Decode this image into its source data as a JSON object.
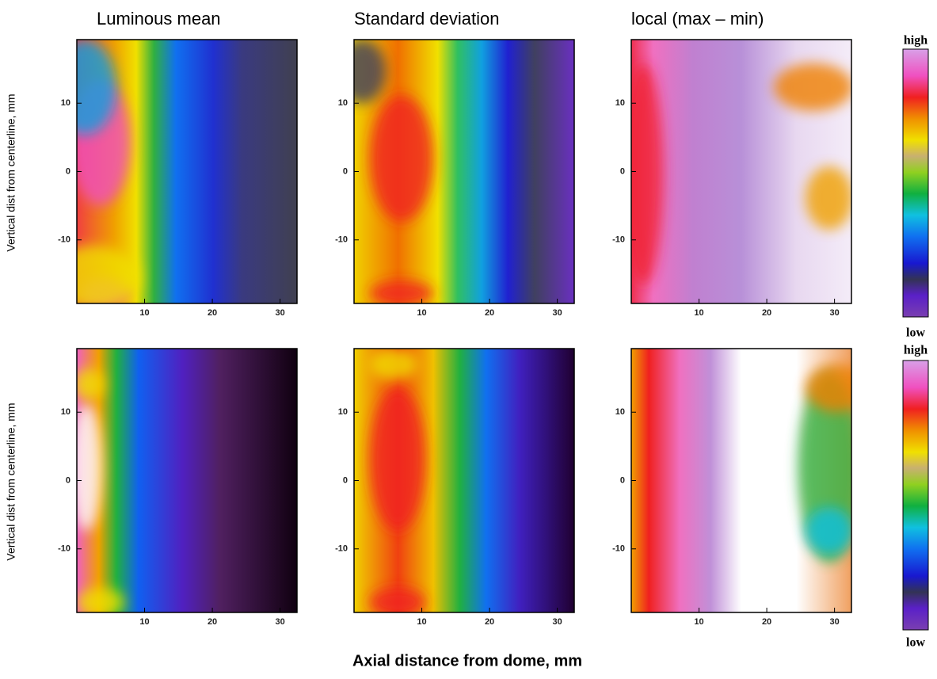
{
  "chart_data": [
    {
      "type": "heatmap",
      "title": "Luminous mean",
      "ylabel": "Vertical dist from centerline, mm",
      "xlim": [
        0,
        32.5
      ],
      "xticks": [
        10,
        20,
        30
      ],
      "ylim": [
        -19.3,
        19.3
      ],
      "yticks": [
        10,
        0,
        -10
      ]
    },
    {
      "type": "heatmap",
      "title": "Standard deviation",
      "xlim": [
        0,
        32.5
      ],
      "xticks": [
        10,
        20,
        30
      ],
      "ylim": [
        -19.3,
        19.3
      ],
      "yticks": [
        10,
        0,
        -10
      ]
    },
    {
      "type": "heatmap",
      "title": "local (max – min)",
      "xlim": [
        0,
        32.5
      ],
      "xticks": [
        10,
        20,
        30
      ],
      "ylim": [
        -19.3,
        19.3
      ],
      "yticks": [
        10,
        0,
        -10
      ]
    },
    {
      "type": "heatmap",
      "ylabel": "Vertical dist from centerline, mm",
      "xlim": [
        0,
        32.5
      ],
      "xticks": [
        10,
        20,
        30
      ],
      "ylim": [
        -19.3,
        19.3
      ],
      "yticks": [
        10,
        0,
        -10
      ]
    },
    {
      "type": "heatmap",
      "xlim": [
        0,
        32.5
      ],
      "xticks": [
        10,
        20,
        30
      ],
      "ylim": [
        -19.3,
        19.3
      ],
      "yticks": [
        10,
        0,
        -10
      ]
    },
    {
      "type": "heatmap",
      "xlim": [
        0,
        32.5
      ],
      "xticks": [
        10,
        20,
        30
      ],
      "ylim": [
        -19.3,
        19.3
      ],
      "yticks": [
        10,
        0,
        -10
      ]
    }
  ],
  "xlabel": "Axial distance from dome, mm",
  "colorbars": [
    {
      "high": "high",
      "low": "low"
    },
    {
      "high": "high",
      "low": "low"
    }
  ]
}
